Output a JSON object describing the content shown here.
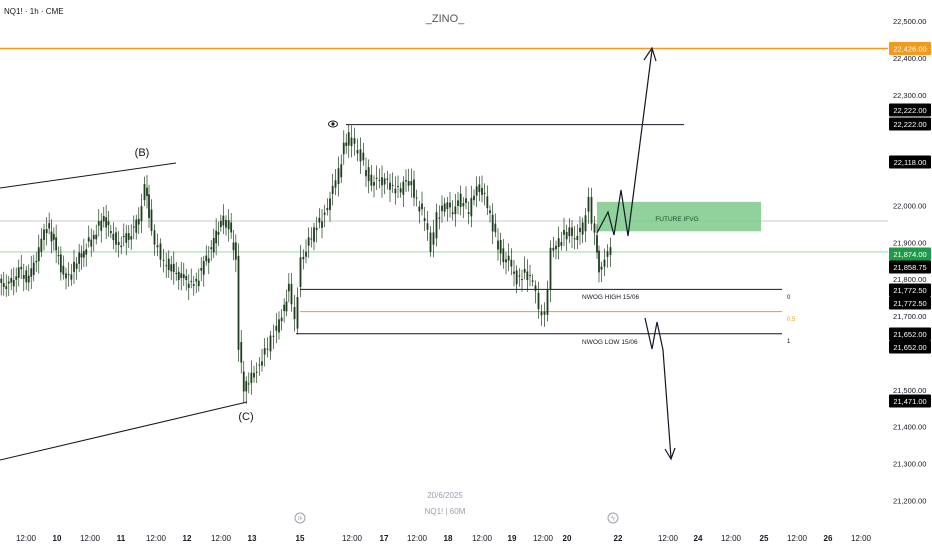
{
  "header": {
    "symbol_label": "NQ1! · 1h · CME",
    "watermark": "_ZINO_"
  },
  "footer": {
    "date_text": "20/6/2025",
    "symbol_text": "NQ1!  |  60M"
  },
  "colors": {
    "background": "#ffffff",
    "candle": "#1f3d1f",
    "orange_level": "#f29a1c",
    "green_zone": "#7ec98a",
    "price_badge": "#000000",
    "price_badge_green": "#1e9b4a",
    "orange_badge": "#f29a1c"
  },
  "chart_data": {
    "type": "candlestick",
    "ylim": [
      21200,
      22500
    ],
    "y_ticks": [
      "22,500.00",
      "22,400.00",
      "22,300.00",
      "22,000.00",
      "21,900.00",
      "21,800.00",
      "21,700.00",
      "21,500.00",
      "21,400.00",
      "21,300.00",
      "21,200.00"
    ],
    "x_tick_labels": [
      "12:00",
      "10",
      "12:00",
      "11",
      "12:00",
      "12",
      "12:00",
      "13",
      "15",
      "12:00",
      "17",
      "12:00",
      "18",
      "12:00",
      "19",
      "12:00",
      "20",
      "22",
      "12:00",
      "24",
      "12:00",
      "25",
      "12:00",
      "26",
      "12:00"
    ],
    "price_badges": [
      {
        "text": "22,426.00",
        "style": "orange"
      },
      {
        "text": "22,222.00",
        "style": "black"
      },
      {
        "text": "22,222.00",
        "style": "black"
      },
      {
        "text": "22,118.00",
        "style": "black"
      },
      {
        "text": "21,874.00",
        "style": "green"
      },
      {
        "text": "21,858.75",
        "style": "black"
      },
      {
        "text": "21,772.50",
        "style": "black"
      },
      {
        "text": "21,772.50",
        "style": "black"
      },
      {
        "text": "21,652.00",
        "style": "black"
      },
      {
        "text": "21,652.00",
        "style": "black"
      },
      {
        "text": "21,471.00",
        "style": "black"
      }
    ],
    "levels": {
      "orange_level": 22426,
      "grey_level": 21958,
      "green_level": 21874,
      "nwog_high": 21772.5,
      "nwog_mid": 21712,
      "nwog_low": 21652,
      "swing_high": 22222
    },
    "fib_labels": [
      "0",
      "0.5",
      "1"
    ],
    "annotations": {
      "wave_b": "(B)",
      "wave_c": "(C)",
      "future_ifvg": "FUTURE IFVG",
      "nwog_high": "NWOG HIGH 15/06",
      "nwog_low": "NWOG LOW 15/06"
    },
    "future_ifvg_zone": [
      21930,
      22010
    ]
  }
}
